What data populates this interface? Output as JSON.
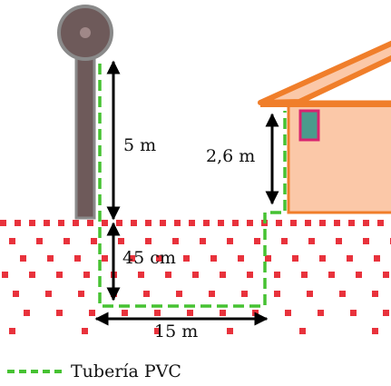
{
  "labels": {
    "post_height": "5 m",
    "house_height": "2,6 m",
    "depth": "45 cm",
    "length": "15 m"
  },
  "legend": {
    "pipe_label": "Tubería PVC"
  },
  "colors": {
    "pipe": "#46c232",
    "soil_dots": "#e8323c",
    "roof": "#f07e2a",
    "wall": "#fbc8a8",
    "tank_post": "#6e5a5a",
    "window": "#4a9b8c",
    "window_frame": "#d8246f"
  },
  "icons": {
    "tank": "water-tank-icon",
    "house": "house-icon"
  }
}
